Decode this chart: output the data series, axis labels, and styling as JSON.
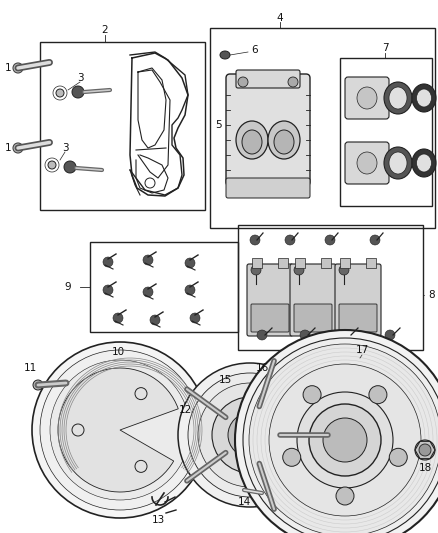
{
  "bg_color": "#ffffff",
  "fig_width": 4.38,
  "fig_height": 5.33,
  "dpi": 100,
  "line_color": "#222222",
  "label_fontsize": 7.5
}
